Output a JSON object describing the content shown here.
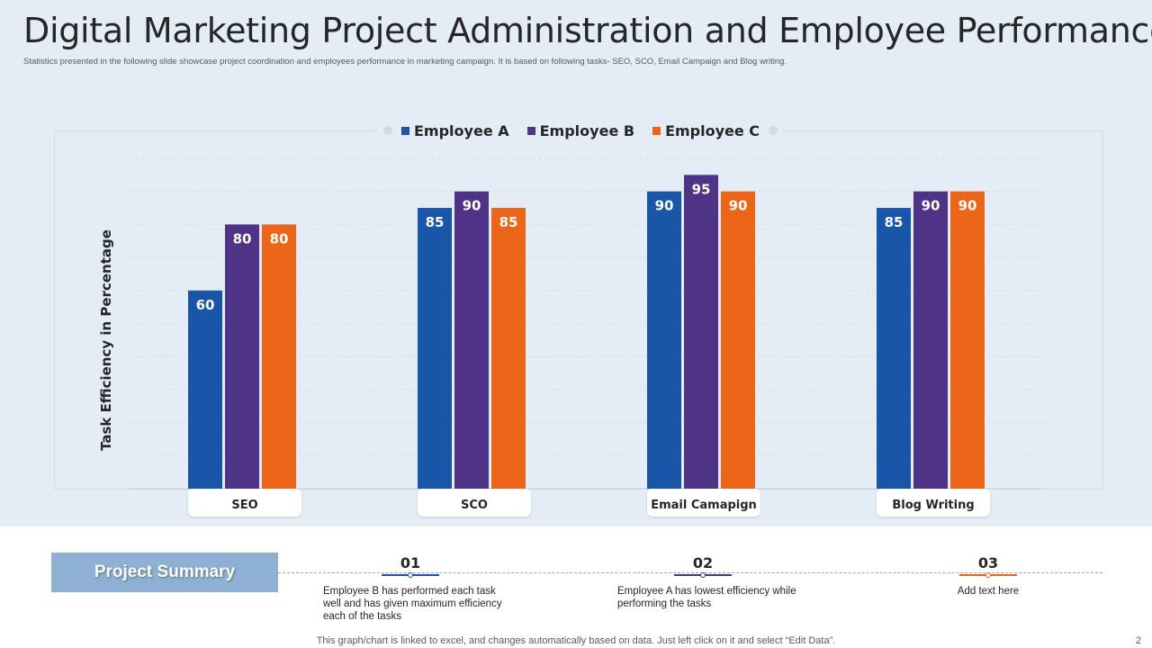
{
  "header": {
    "title": "Digital Marketing Project Administration and Employee Performance",
    "subtitle": "Statistics presented in the following slide showcase project coordination and employees performance in marketing campaign. It is based on following tasks- SEO, SCO, Email Campaign and Blog writing."
  },
  "chart_data": {
    "type": "bar",
    "title": "",
    "xlabel": "",
    "ylabel": "Task Efficiency in Percentage",
    "ylim": [
      0,
      100
    ],
    "grid": true,
    "legend_position": "top-center",
    "categories": [
      "SEO",
      "SCO",
      "Email Camapign",
      "Blog Writing"
    ],
    "series": [
      {
        "name": "Employee A",
        "color": "#1a56a8",
        "values": [
          60,
          85,
          90,
          85
        ]
      },
      {
        "name": "Employee B",
        "color": "#4e3386",
        "values": [
          80,
          90,
          95,
          90
        ]
      },
      {
        "name": "Employee C",
        "color": "#ec6519",
        "values": [
          80,
          85,
          90,
          90
        ]
      }
    ]
  },
  "summary": {
    "label": "Project Summary",
    "steps": [
      {
        "number": "01",
        "color": "#1a56a8",
        "text": "Employee B has performed each task well and has given maximum efficiency each of the tasks"
      },
      {
        "number": "02",
        "color": "#4e3386",
        "text": "Employee A has lowest efficiency while performing the tasks"
      },
      {
        "number": "03",
        "color": "#ec6519",
        "text": "Add text here"
      }
    ]
  },
  "footer": {
    "note": "This graph/chart is linked to excel, and changes automatically based on data. Just left click on it and select “Edit Data”.",
    "page": "2"
  }
}
